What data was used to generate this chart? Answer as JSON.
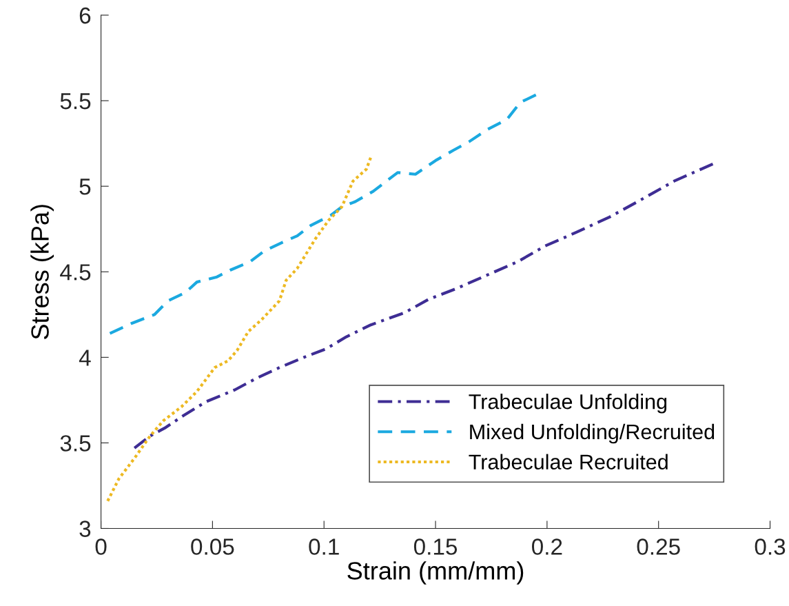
{
  "chart_data": {
    "type": "line",
    "xlabel": "Strain (mm/mm)",
    "ylabel": "Stress (kPa)",
    "xlim": [
      0,
      0.3
    ],
    "xticks": [
      0,
      0.05,
      0.1,
      0.15,
      0.2,
      0.25,
      0.3
    ],
    "ylim": [
      3,
      6
    ],
    "yticks": [
      3,
      3.5,
      4,
      4.5,
      5,
      5.5,
      6
    ],
    "grid": false,
    "legend": "bottom right",
    "marker": "none",
    "series": [
      {
        "name": "Trabeculae Unfolding",
        "color": "#3e2d94",
        "line_style": "dashdot",
        "x": [
          0.015,
          0.022,
          0.029,
          0.037,
          0.047,
          0.06,
          0.07,
          0.08,
          0.091,
          0.101,
          0.11,
          0.121,
          0.136,
          0.147,
          0.159,
          0.173,
          0.187,
          0.199,
          0.213,
          0.228,
          0.242,
          0.257,
          0.276
        ],
        "values": [
          3.47,
          3.54,
          3.59,
          3.66,
          3.74,
          3.81,
          3.88,
          3.94,
          4.0,
          4.05,
          4.12,
          4.19,
          4.26,
          4.34,
          4.4,
          4.48,
          4.56,
          4.65,
          4.73,
          4.82,
          4.92,
          5.03,
          5.14
        ]
      },
      {
        "name": "Mixed Unfolding/Recruited",
        "color": "#1ba9e0",
        "line_style": "dashed",
        "x": [
          0.004,
          0.014,
          0.024,
          0.03,
          0.038,
          0.043,
          0.052,
          0.058,
          0.067,
          0.073,
          0.081,
          0.088,
          0.094,
          0.103,
          0.108,
          0.114,
          0.122,
          0.126,
          0.133,
          0.141,
          0.15,
          0.158,
          0.165,
          0.173,
          0.182,
          0.188,
          0.196
        ],
        "values": [
          4.14,
          4.2,
          4.25,
          4.33,
          4.38,
          4.44,
          4.47,
          4.51,
          4.56,
          4.62,
          4.67,
          4.71,
          4.77,
          4.83,
          4.88,
          4.91,
          4.97,
          5.01,
          5.08,
          5.07,
          5.15,
          5.21,
          5.26,
          5.33,
          5.39,
          5.49,
          5.54
        ]
      },
      {
        "name": "Trabeculae Recruited",
        "color": "#edb922",
        "line_style": "dotted",
        "x": [
          0.003,
          0.008,
          0.015,
          0.022,
          0.028,
          0.036,
          0.043,
          0.051,
          0.057,
          0.061,
          0.066,
          0.072,
          0.08,
          0.083,
          0.088,
          0.096,
          0.102,
          0.108,
          0.113,
          0.119,
          0.121
        ],
        "values": [
          3.16,
          3.29,
          3.41,
          3.54,
          3.63,
          3.71,
          3.8,
          3.94,
          3.98,
          4.04,
          4.15,
          4.22,
          4.33,
          4.45,
          4.52,
          4.69,
          4.8,
          4.88,
          5.03,
          5.1,
          5.17
        ]
      }
    ]
  }
}
